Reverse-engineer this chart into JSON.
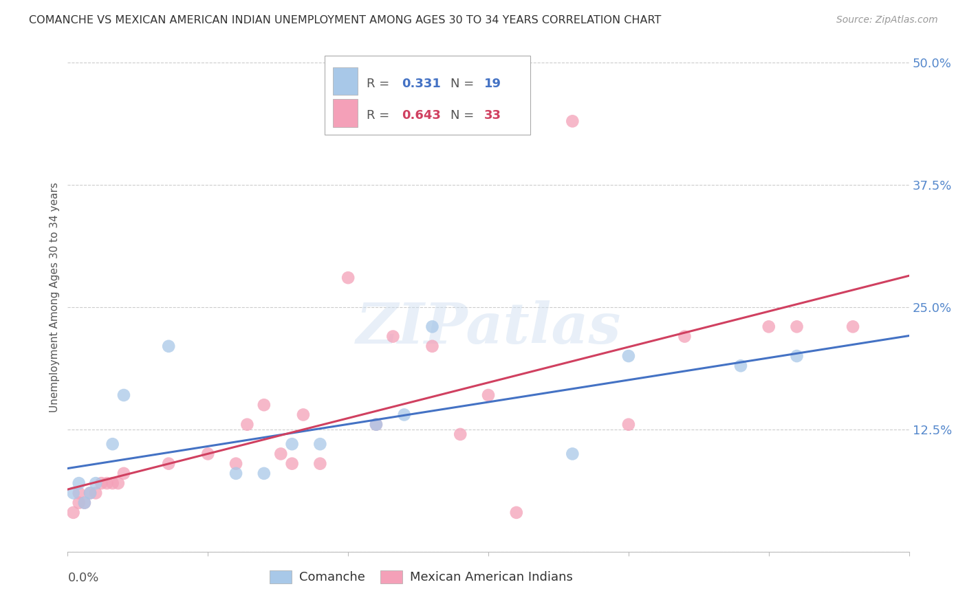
{
  "title": "COMANCHE VS MEXICAN AMERICAN INDIAN UNEMPLOYMENT AMONG AGES 30 TO 34 YEARS CORRELATION CHART",
  "source": "Source: ZipAtlas.com",
  "ylabel": "Unemployment Among Ages 30 to 34 years",
  "xlim": [
    0.0,
    0.15
  ],
  "ylim": [
    0.0,
    0.52
  ],
  "yticks": [
    0.0,
    0.125,
    0.25,
    0.375,
    0.5
  ],
  "ytick_labels": [
    "",
    "12.5%",
    "25.0%",
    "37.5%",
    "50.0%"
  ],
  "xticks": [
    0.0,
    0.025,
    0.05,
    0.075,
    0.1,
    0.125,
    0.15
  ],
  "comanche_R": 0.331,
  "comanche_N": 19,
  "mai_R": 0.643,
  "mai_N": 33,
  "comanche_color": "#a8c8e8",
  "mai_color": "#f4a0b8",
  "line_comanche_color": "#4472c4",
  "line_mai_color": "#d04060",
  "watermark": "ZIPatlas",
  "comanche_x": [
    0.001,
    0.002,
    0.003,
    0.004,
    0.005,
    0.008,
    0.01,
    0.018,
    0.03,
    0.035,
    0.04,
    0.045,
    0.055,
    0.06,
    0.065,
    0.09,
    0.1,
    0.12,
    0.13
  ],
  "comanche_y": [
    0.06,
    0.07,
    0.05,
    0.06,
    0.07,
    0.11,
    0.16,
    0.21,
    0.08,
    0.08,
    0.11,
    0.11,
    0.13,
    0.14,
    0.23,
    0.1,
    0.2,
    0.19,
    0.2
  ],
  "mai_x": [
    0.001,
    0.002,
    0.002,
    0.003,
    0.004,
    0.005,
    0.006,
    0.007,
    0.008,
    0.009,
    0.01,
    0.018,
    0.025,
    0.03,
    0.032,
    0.035,
    0.038,
    0.04,
    0.042,
    0.045,
    0.05,
    0.055,
    0.058,
    0.065,
    0.07,
    0.075,
    0.08,
    0.09,
    0.1,
    0.11,
    0.125,
    0.13,
    0.14
  ],
  "mai_y": [
    0.04,
    0.05,
    0.06,
    0.05,
    0.06,
    0.06,
    0.07,
    0.07,
    0.07,
    0.07,
    0.08,
    0.09,
    0.1,
    0.09,
    0.13,
    0.15,
    0.1,
    0.09,
    0.14,
    0.09,
    0.28,
    0.13,
    0.22,
    0.21,
    0.12,
    0.16,
    0.04,
    0.44,
    0.13,
    0.22,
    0.23,
    0.23,
    0.23
  ]
}
